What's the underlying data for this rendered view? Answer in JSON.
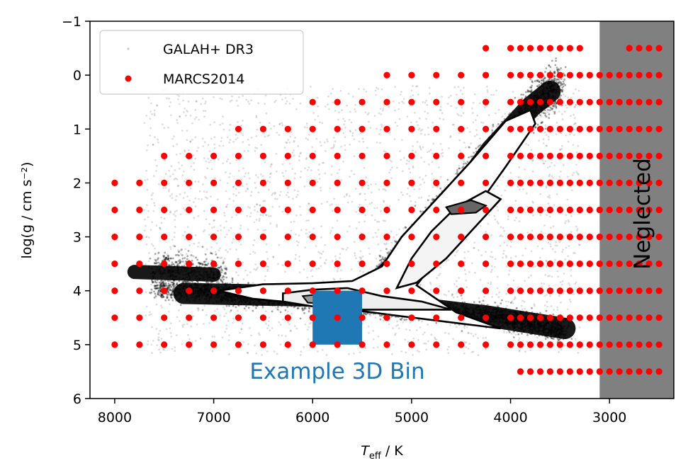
{
  "chart_data": {
    "type": "scatter",
    "xlabel_main": "T",
    "xlabel_sub": "eff",
    "xlabel_unit": " / K",
    "ylabel": "log(g / cm s⁻²)",
    "xlim": [
      8250,
      2350
    ],
    "ylim": [
      6,
      -1
    ],
    "x_ticks": [
      8000,
      7000,
      6000,
      5000,
      4000,
      3000
    ],
    "y_ticks": [
      -1,
      0,
      1,
      2,
      3,
      4,
      5,
      6
    ],
    "y_tick_labels": [
      "−1",
      "0",
      "1",
      "2",
      "3",
      "4",
      "5",
      "6"
    ],
    "legend": {
      "placement": "upper-left",
      "entries": [
        "GALAH+ DR3",
        "MARCS2014"
      ]
    },
    "series": [
      {
        "name": "GALAH+ DR3",
        "kind": "density-scatter",
        "color": "#000000"
      },
      {
        "name": "MARCS2014",
        "kind": "grid-points",
        "color": "#ff0000",
        "rows": [
          {
            "logg": -0.5,
            "teff_max": 4250,
            "teff_min": 3300,
            "extra": [
              2800,
              2700,
              2600,
              2500
            ]
          },
          {
            "logg": 0.0,
            "teff_max": 5250,
            "teff_min": 2500
          },
          {
            "logg": 0.5,
            "teff_max": 6000,
            "teff_min": 2500
          },
          {
            "logg": 1.0,
            "teff_max": 6750,
            "teff_min": 2500
          },
          {
            "logg": 1.5,
            "teff_max": 7500,
            "teff_min": 2500
          },
          {
            "logg": 2.0,
            "teff_max": 8000,
            "teff_min": 2500
          },
          {
            "logg": 2.5,
            "teff_max": 8000,
            "teff_min": 2500
          },
          {
            "logg": 3.0,
            "teff_max": 8000,
            "teff_min": 2500
          },
          {
            "logg": 3.5,
            "teff_max": 8000,
            "teff_min": 2500
          },
          {
            "logg": 4.0,
            "teff_max": 8000,
            "teff_min": 2500
          },
          {
            "logg": 4.5,
            "teff_max": 8000,
            "teff_min": 2500
          },
          {
            "logg": 5.0,
            "teff_max": 8000,
            "teff_min": 2500
          },
          {
            "logg": 5.5,
            "teff_max": 3900,
            "teff_min": 2500
          }
        ]
      }
    ],
    "highlight_bin": {
      "label": "Example 3D Bin",
      "teff_range": [
        6000,
        5500
      ],
      "logg_range": [
        4.0,
        5.0
      ],
      "color": "#1f77b4"
    },
    "neglected_region": {
      "label": "Neglected",
      "teff_below": 3100,
      "color": "#808080"
    }
  }
}
